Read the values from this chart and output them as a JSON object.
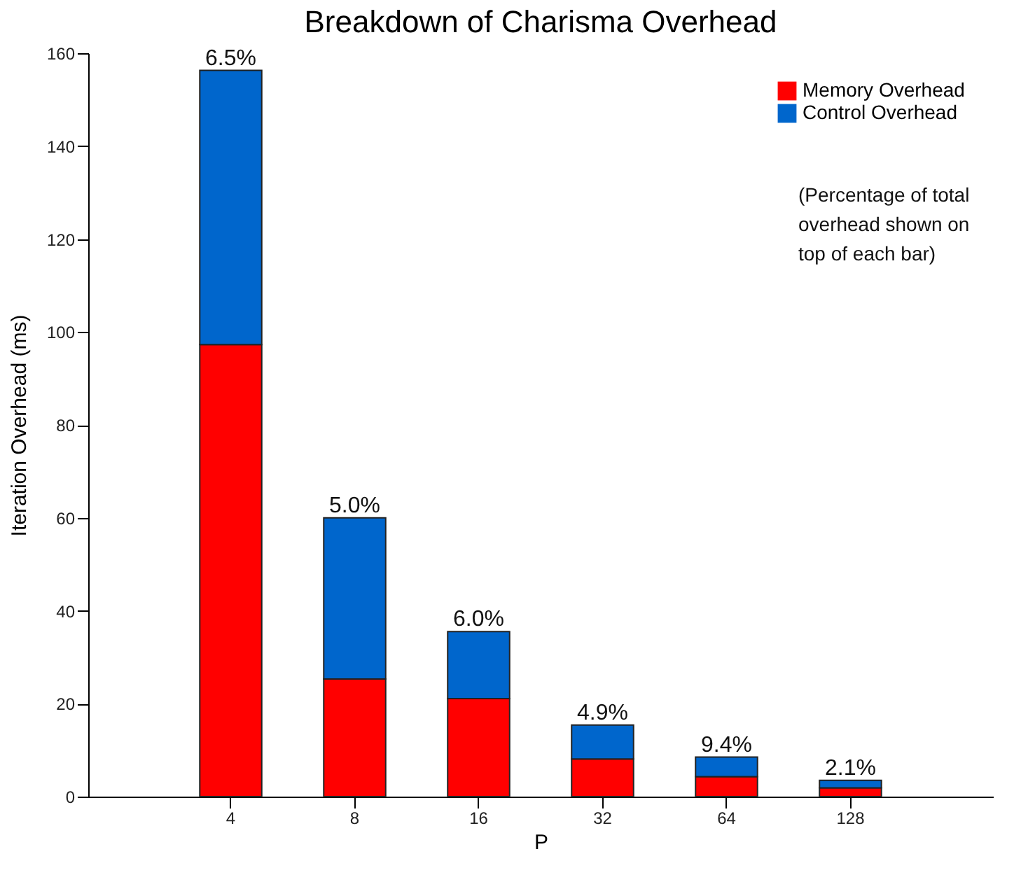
{
  "chart_data": {
    "type": "bar",
    "title": "Breakdown of Charisma Overhead",
    "xlabel": "P",
    "ylabel": "Iteration Overhead (ms)",
    "categories": [
      "4",
      "8",
      "16",
      "32",
      "64",
      "128"
    ],
    "series": [
      {
        "name": "Memory Overhead",
        "color": "#ff0000",
        "values": [
          97.3,
          25.3,
          21.1,
          8.1,
          4.3,
          1.9
        ]
      },
      {
        "name": "Control Overhead",
        "color": "#0066cc",
        "values": [
          59.0,
          34.7,
          14.4,
          7.3,
          4.2,
          1.6
        ]
      }
    ],
    "stacked": true,
    "ylim": [
      0,
      160
    ],
    "yticks": [
      0,
      20,
      40,
      60,
      80,
      100,
      120,
      140,
      160
    ],
    "grid": false,
    "legend": "top right",
    "annotations": [
      {
        "text": "6.5%",
        "x": "4",
        "y": 156.3
      },
      {
        "text": "5.0%",
        "x": "8",
        "y": 60.0
      },
      {
        "text": "6.0%",
        "x": "16",
        "y": 35.5
      },
      {
        "text": "4.9%",
        "x": "32",
        "y": 15.4
      },
      {
        "text": "9.4%",
        "x": "64",
        "y": 8.5
      },
      {
        "text": "2.1%",
        "x": "128",
        "y": 3.5
      },
      "(Percentage of total overhead shown on top of each bar)"
    ]
  }
}
